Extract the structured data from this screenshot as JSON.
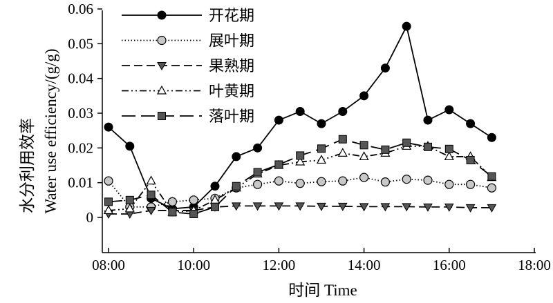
{
  "chart_data": {
    "type": "line",
    "x_title": "时间 Time",
    "y_title_cn": "水分利用效率",
    "y_title_en": "Water use efficiency/(g/g)",
    "x_ticks": [
      "08:00",
      "10:00",
      "12:00",
      "14:00",
      "16:00",
      "18:00"
    ],
    "x_tick_hours": [
      8,
      10,
      12,
      14,
      16,
      18
    ],
    "y_ticks": [
      "0",
      "0.01",
      "0.02",
      "0.03",
      "0.04",
      "0.05",
      "0.06"
    ],
    "y_tick_values": [
      0,
      0.01,
      0.02,
      0.03,
      0.04,
      0.05,
      0.06
    ],
    "xlim": [
      8,
      18
    ],
    "ylim": [
      -0.01,
      0.06
    ],
    "legend_position": "top-center",
    "x": [
      8,
      8.5,
      9,
      9.5,
      10,
      10.5,
      11,
      11.5,
      12,
      12.5,
      13,
      13.5,
      14,
      14.5,
      15,
      15.5,
      16,
      16.5,
      17
    ],
    "series": [
      {
        "name": "开花期",
        "style": "solid",
        "marker": "circle-filled",
        "color": "#000000",
        "values": [
          0.026,
          0.0205,
          0.0055,
          0.0025,
          0.003,
          0.009,
          0.0175,
          0.02,
          0.028,
          0.0305,
          0.027,
          0.0305,
          0.035,
          0.043,
          0.055,
          0.028,
          0.031,
          0.027,
          0.023
        ]
      },
      {
        "name": "展叶期",
        "style": "dotted",
        "marker": "circle-gray",
        "color": "#000000",
        "values": [
          0.0105,
          0.003,
          0.003,
          0.0045,
          0.005,
          0.0055,
          0.0085,
          0.0095,
          0.0105,
          0.0098,
          0.0103,
          0.0105,
          0.0115,
          0.0102,
          0.011,
          0.0107,
          0.0095,
          0.0095,
          0.0085
        ]
      },
      {
        "name": "果熟期",
        "style": "dashed",
        "marker": "triangle-down",
        "color": "#000000",
        "values": [
          0.001,
          0.001,
          0.002,
          0.002,
          0.002,
          0.003,
          0.0033,
          0.0033,
          0.0033,
          0.0033,
          0.0032,
          0.0032,
          0.0031,
          0.0031,
          0.0031,
          0.003,
          0.003,
          0.0028,
          0.0028
        ]
      },
      {
        "name": "叶黄期",
        "style": "dash-dot-dot",
        "marker": "triangle-up-open",
        "color": "#000000",
        "values": [
          0.002,
          0.0025,
          0.0105,
          0.0015,
          0.002,
          0.005,
          0.0085,
          0.0125,
          0.015,
          0.016,
          0.0165,
          0.0185,
          0.0175,
          0.0185,
          0.0205,
          0.0205,
          0.0175,
          0.0175,
          0.0115
        ]
      },
      {
        "name": "落叶期",
        "style": "long-dash",
        "marker": "square-gray",
        "color": "#000000",
        "values": [
          0.0045,
          0.005,
          0.0065,
          0.0015,
          0.001,
          0.003,
          0.009,
          0.013,
          0.0152,
          0.0178,
          0.0198,
          0.0225,
          0.0208,
          0.0195,
          0.0215,
          0.0203,
          0.0197,
          0.0165,
          0.0118
        ]
      }
    ]
  }
}
